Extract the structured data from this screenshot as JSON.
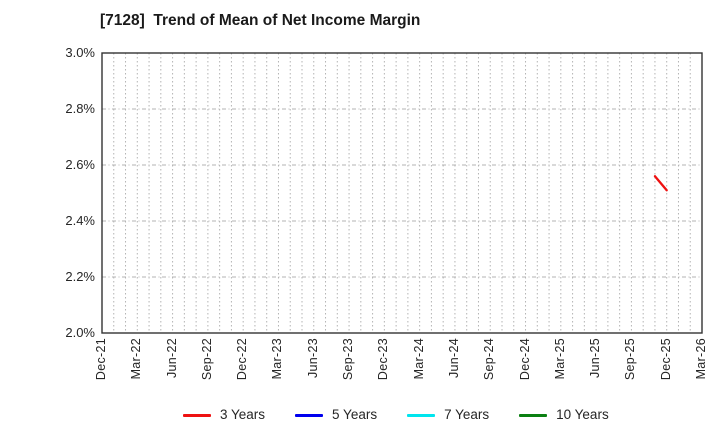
{
  "chart": {
    "title": "[7128]  Trend of Mean of Net Income Margin"
  },
  "chart_data": {
    "type": "line",
    "title": "[7128]  Trend of Mean of Net Income Margin",
    "xlabel": "",
    "ylabel": "",
    "ylim": [
      2.0,
      3.0
    ],
    "y_ticks": [
      3.0,
      2.8,
      2.6,
      2.4,
      2.2,
      2.0
    ],
    "y_tick_labels": [
      "3.0%",
      "2.8%",
      "2.6%",
      "2.4%",
      "2.2%",
      "2.0%"
    ],
    "x_start": "Dec-21",
    "x_end": "Mar-26",
    "x_tick_labels": [
      "Dec-21",
      "Mar-22",
      "Jun-22",
      "Sep-22",
      "Dec-22",
      "Mar-23",
      "Jun-23",
      "Sep-23",
      "Dec-23",
      "Mar-24",
      "Jun-24",
      "Sep-24",
      "Dec-24",
      "Mar-25",
      "Jun-25",
      "Sep-25",
      "Dec-25",
      "Mar-26"
    ],
    "grid": true,
    "legend_position": "bottom",
    "series": [
      {
        "name": "3 Years",
        "color": "#ee1111",
        "points": [
          [
            "Nov-25",
            2.56
          ],
          [
            "Dec-25",
            2.51
          ]
        ]
      },
      {
        "name": "5 Years",
        "color": "#0000ee",
        "points": []
      },
      {
        "name": "7 Years",
        "color": "#00e5ee",
        "points": []
      },
      {
        "name": "10 Years",
        "color": "#0b8012",
        "points": []
      }
    ],
    "style": {
      "background": "#ffffff",
      "border_color": "#333333",
      "grid_color": "#b3b3b3",
      "text_color": "#262626"
    }
  }
}
